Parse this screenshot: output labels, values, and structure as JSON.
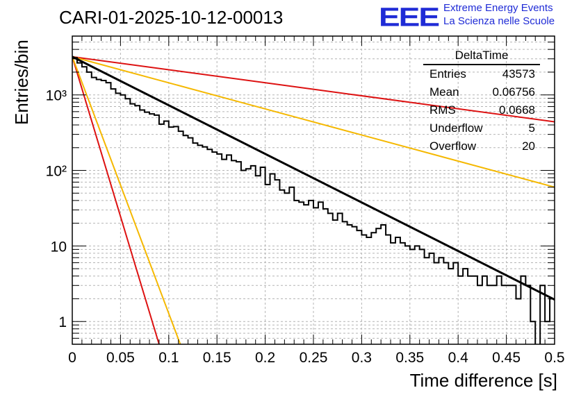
{
  "header": {
    "run_title": "CARI-01-2025-10-12-00013",
    "logo_letters": "EEE",
    "logo_line1": "Extreme Energy Events",
    "logo_line2": "La Scienza nelle Scuole",
    "logo_color": "#1f2bd6"
  },
  "stats_box": {
    "title": "DeltaTime",
    "rows": [
      {
        "label": "Entries",
        "value": "43573"
      },
      {
        "label": "Mean",
        "value": "0.06756"
      },
      {
        "label": "RMS",
        "value": "0.0668"
      },
      {
        "label": "Underflow",
        "value": "5"
      },
      {
        "label": "Overflow",
        "value": "20"
      }
    ]
  },
  "chart_data": {
    "type": "histogram",
    "title": "CARI-01-2025-10-12-00013",
    "xlabel": "Time difference [s]",
    "ylabel": "Entries/bin",
    "xlim": [
      0,
      0.5
    ],
    "ylim": [
      0.5,
      6000
    ],
    "yscale": "log",
    "grid": true,
    "x_tick_labels": [
      "0",
      "0.05",
      "0.1",
      "0.15",
      "0.2",
      "0.25",
      "0.3",
      "0.35",
      "0.4",
      "0.45",
      "0.5"
    ],
    "x_tick_values": [
      0,
      0.05,
      0.1,
      0.15,
      0.2,
      0.25,
      0.3,
      0.35,
      0.4,
      0.45,
      0.5
    ],
    "y_tick_labels": [
      "1",
      "10",
      "10²",
      "10³"
    ],
    "y_tick_values": [
      1,
      10,
      100,
      1000
    ],
    "bin_width": 0.005,
    "bin_counts": [
      3100,
      2650,
      2350,
      2000,
      1700,
      1600,
      1550,
      1450,
      1200,
      1050,
      1000,
      890,
      760,
      720,
      630,
      590,
      560,
      540,
      410,
      450,
      375,
      380,
      330,
      290,
      270,
      230,
      215,
      205,
      190,
      175,
      165,
      140,
      160,
      135,
      130,
      100,
      105,
      115,
      85,
      110,
      65,
      90,
      75,
      55,
      50,
      60,
      40,
      38,
      35,
      40,
      32,
      38,
      31,
      27,
      22,
      27,
      21,
      19,
      18,
      16,
      14,
      13,
      15,
      17,
      19,
      14,
      11,
      13,
      11,
      10,
      9,
      10,
      9,
      7,
      8,
      6,
      7,
      6,
      5,
      6,
      4,
      5,
      4,
      4,
      3,
      4,
      3,
      3,
      4,
      3,
      3,
      3,
      2,
      4,
      3,
      1,
      0.3,
      3,
      1,
      2
    ],
    "fit_line": {
      "name": "fit",
      "color": "#000000",
      "points": [
        [
          0,
          3200
        ],
        [
          0.5,
          1.95
        ]
      ]
    },
    "reference_lines": [
      {
        "name": "red-slow",
        "color": "#dd1111",
        "points": [
          [
            0,
            3200
          ],
          [
            0.5,
            440
          ]
        ]
      },
      {
        "name": "yellow-slow",
        "color": "#f5b800",
        "points": [
          [
            0,
            3200
          ],
          [
            0.5,
            60
          ]
        ]
      },
      {
        "name": "red-fast",
        "color": "#dd1111",
        "points": [
          [
            0,
            3200
          ],
          [
            0.09,
            0.5
          ]
        ]
      },
      {
        "name": "yellow-fast",
        "color": "#f5b800",
        "points": [
          [
            0,
            3200
          ],
          [
            0.112,
            0.5
          ]
        ]
      }
    ]
  }
}
